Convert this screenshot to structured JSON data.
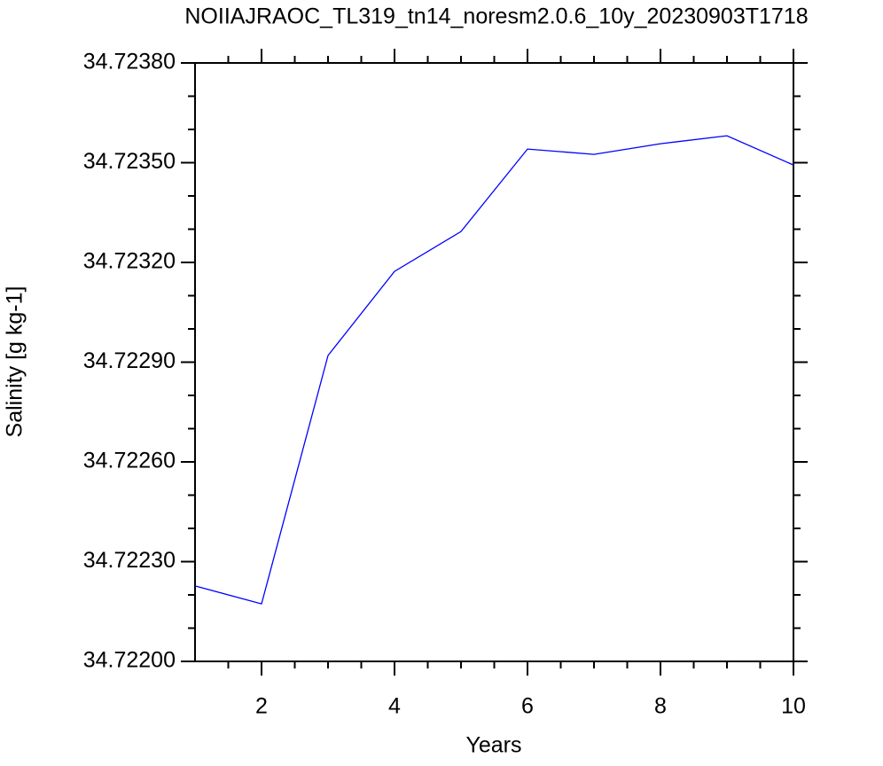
{
  "chart_data": {
    "type": "line",
    "title": "NOIIAJRAOC_TL319_tn14_noresm2.0.6_10y_20230903T1718",
    "x_label": "Years",
    "y_label": "Salinity [g kg-1]",
    "x": [
      1,
      2,
      3,
      4,
      5,
      6,
      7,
      8,
      9,
      10
    ],
    "series": [
      {
        "color": "#0000ff",
        "values": [
          34.722227,
          34.722173,
          34.72292,
          34.723173,
          34.723293,
          34.723541,
          34.723525,
          34.723557,
          34.723581,
          34.723493
        ]
      }
    ],
    "xlim": [
      1,
      10
    ],
    "xticks": [
      2,
      4,
      6,
      8,
      10
    ],
    "xminorticks": [
      1.5,
      2.5,
      3,
      3.5,
      4.5,
      5,
      5.5,
      6.5,
      7,
      7.5,
      8.5,
      9,
      9.5
    ],
    "ylim": [
      34.722,
      34.7238
    ],
    "yticks": [
      {
        "value": 34.722,
        "label": "34.72200"
      },
      {
        "value": 34.7223,
        "label": "34.72230"
      },
      {
        "value": 34.7226,
        "label": "34.72260"
      },
      {
        "value": 34.7229,
        "label": "34.72290"
      },
      {
        "value": 34.7232,
        "label": "34.72320"
      },
      {
        "value": 34.7235,
        "label": "34.72350"
      },
      {
        "value": 34.7238,
        "label": "34.72380"
      }
    ],
    "yminorticks": [
      34.7221,
      34.7222,
      34.7224,
      34.7225,
      34.7227,
      34.7228,
      34.723,
      34.7231,
      34.7233,
      34.7234,
      34.7236,
      34.7237
    ]
  }
}
